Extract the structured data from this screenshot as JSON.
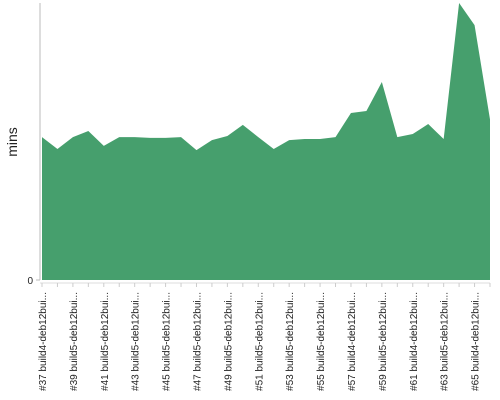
{
  "chart_data": {
    "type": "area",
    "y_label": "mins",
    "color": "#469f6d",
    "categories": [
      "#37 build4-deb12bui...",
      null,
      "#39 build5-deb12bui...",
      null,
      "#41 build5-deb12bui...",
      null,
      "#43 build5-deb12bui...",
      null,
      "#45 build5-deb12bui...",
      null,
      "#47 build5-deb12bui...",
      null,
      "#49 build5-deb12bui...",
      null,
      "#51 build5-deb12bui...",
      null,
      "#53 build5-deb12bui...",
      null,
      "#55 build5-deb12bui...",
      null,
      "#57 build4-deb12bui...",
      null,
      "#59 build5-deb12bui...",
      null,
      "#61 build4-deb12bui...",
      null,
      "#63 build5-deb12bui...",
      null,
      "#65 build4-deb12bui...",
      null
    ],
    "values": [
      51.6,
      47.3,
      51.6,
      53.8,
      48.4,
      51.6,
      51.6,
      51.3,
      51.3,
      51.6,
      46.9,
      50.5,
      52,
      56,
      51.6,
      47.3,
      50.5,
      50.9,
      50.9,
      51.6,
      60.3,
      61,
      71.5,
      51.6,
      52.7,
      56.3,
      50.9,
      100,
      92,
      58
    ],
    "ylim": [
      0,
      100
    ],
    "yticks": [
      0
    ]
  }
}
